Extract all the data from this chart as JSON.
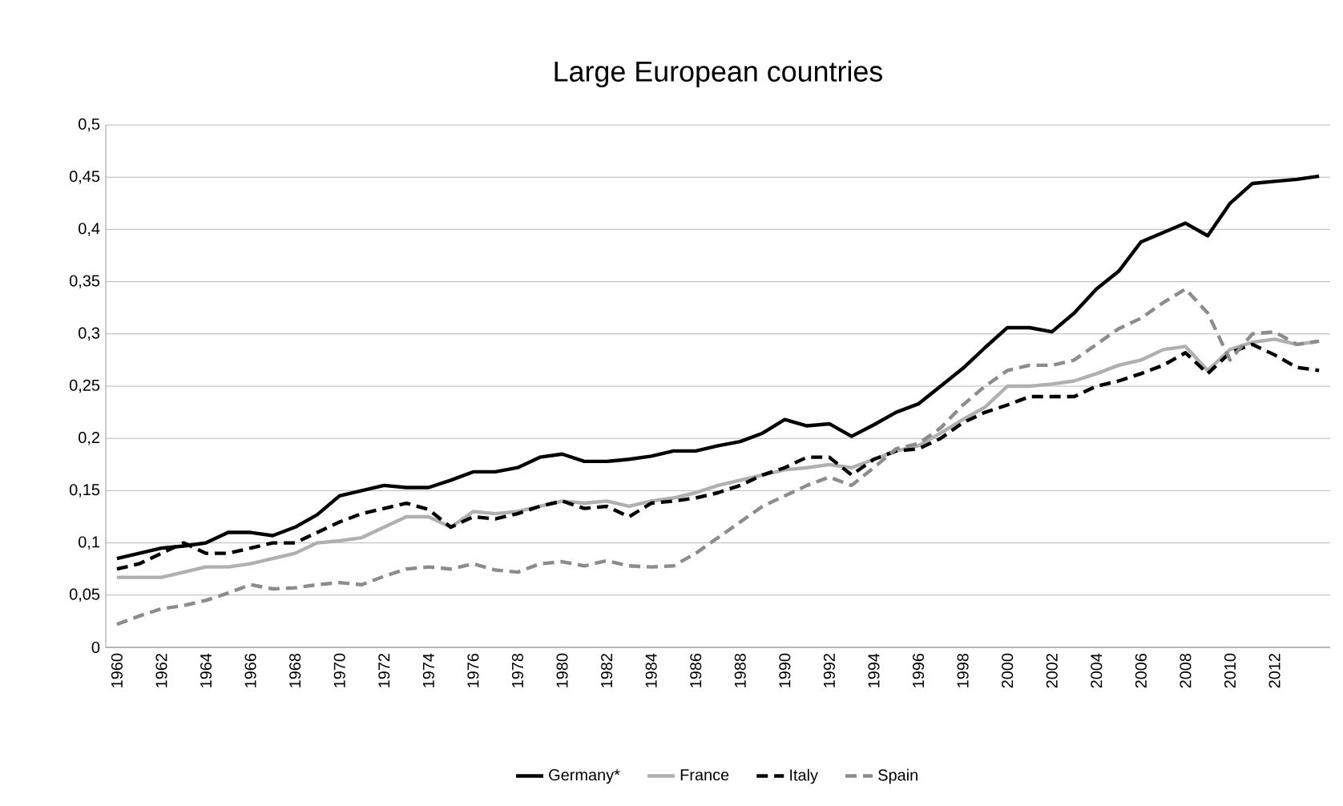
{
  "chart_data": {
    "type": "line",
    "title": "Large European countries",
    "categories": [
      "1960",
      null,
      "1962",
      null,
      "1964",
      null,
      "1966",
      null,
      "1968",
      null,
      "1970",
      null,
      "1972",
      null,
      "1974",
      null,
      "1976",
      null,
      "1978",
      null,
      "1980",
      null,
      "1982",
      null,
      "1984",
      null,
      "1986",
      null,
      "1988",
      null,
      "1990",
      null,
      "1992",
      null,
      "1994",
      null,
      "1996",
      null,
      "1998",
      null,
      "2000",
      null,
      "2002",
      null,
      "2004",
      null,
      "2006",
      null,
      "2008",
      null,
      "2010",
      null,
      "2012",
      null,
      null
    ],
    "ylim": [
      0,
      0.5
    ],
    "yticks": [
      0,
      {
        "value": 0.05,
        "label": "0,05"
      },
      {
        "value": 0.1,
        "label": "0,1"
      },
      {
        "value": 0.15,
        "label": "0,15"
      },
      {
        "value": 0.2,
        "label": "0,2"
      },
      {
        "value": 0.25,
        "label": "0,25"
      },
      {
        "value": 0.3,
        "label": "0,3"
      },
      {
        "value": 0.35,
        "label": "0,35"
      },
      {
        "value": 0.4,
        "label": "0,4"
      },
      {
        "value": 0.45,
        "label": "0,45"
      },
      {
        "value": 0.5,
        "label": "0,5"
      }
    ],
    "grid": "y",
    "legend": "bottom",
    "series": [
      {
        "name": "Germany*",
        "color": "#000000",
        "line_style": "solid",
        "values": [
          0.085,
          0.09,
          0.095,
          0.097,
          0.1,
          0.11,
          0.11,
          0.107,
          0.115,
          0.127,
          0.145,
          0.15,
          0.155,
          0.153,
          0.153,
          0.16,
          0.168,
          0.168,
          0.172,
          0.182,
          0.185,
          0.178,
          0.178,
          0.18,
          0.183,
          0.188,
          0.188,
          0.193,
          0.197,
          0.205,
          0.218,
          0.212,
          0.214,
          0.202,
          0.213,
          0.225,
          0.233,
          0.25,
          0.267,
          0.287,
          0.306,
          0.306,
          0.302,
          0.32,
          0.343,
          0.36,
          0.388,
          0.397,
          0.406,
          0.394,
          0.425,
          0.444,
          0.446,
          0.448,
          0.451
        ]
      },
      {
        "name": "France",
        "color": "#b0b0b0",
        "line_style": "solid",
        "values": [
          0.067,
          0.067,
          0.067,
          0.072,
          0.077,
          0.077,
          0.08,
          0.085,
          0.09,
          0.1,
          0.102,
          0.105,
          0.115,
          0.125,
          0.125,
          0.115,
          0.13,
          0.128,
          0.13,
          0.135,
          0.14,
          0.138,
          0.14,
          0.135,
          0.14,
          0.143,
          0.148,
          0.155,
          0.16,
          0.165,
          0.17,
          0.172,
          0.175,
          0.172,
          0.18,
          0.188,
          0.193,
          0.205,
          0.218,
          0.23,
          0.25,
          0.25,
          0.252,
          0.255,
          0.262,
          0.27,
          0.275,
          0.285,
          0.288,
          0.265,
          0.285,
          0.292,
          0.295,
          0.29,
          0.293
        ]
      },
      {
        "name": "Italy",
        "color": "#000000",
        "line_style": "dashed",
        "values": [
          0.075,
          0.08,
          0.09,
          0.1,
          0.09,
          0.09,
          0.095,
          0.1,
          0.1,
          0.11,
          0.12,
          0.128,
          0.133,
          0.138,
          0.132,
          0.115,
          0.125,
          0.123,
          0.128,
          0.135,
          0.14,
          0.133,
          0.135,
          0.125,
          0.138,
          0.14,
          0.143,
          0.148,
          0.155,
          0.165,
          0.172,
          0.182,
          0.182,
          0.165,
          0.18,
          0.188,
          0.19,
          0.2,
          0.215,
          0.225,
          0.232,
          0.24,
          0.24,
          0.24,
          0.25,
          0.255,
          0.262,
          0.27,
          0.282,
          0.262,
          0.282,
          0.29,
          0.28,
          0.268,
          0.265
        ]
      },
      {
        "name": "Spain",
        "color": "#8c8c8c",
        "line_style": "dashed",
        "values": [
          0.022,
          0.03,
          0.037,
          0.04,
          0.045,
          0.052,
          0.06,
          0.056,
          0.057,
          0.06,
          0.062,
          0.06,
          0.068,
          0.075,
          0.077,
          0.075,
          0.08,
          0.074,
          0.072,
          0.08,
          0.082,
          0.078,
          0.083,
          0.078,
          0.077,
          0.078,
          0.09,
          0.105,
          0.12,
          0.135,
          0.145,
          0.155,
          0.163,
          0.155,
          0.172,
          0.19,
          0.195,
          0.21,
          0.232,
          0.25,
          0.265,
          0.27,
          0.27,
          0.275,
          0.29,
          0.305,
          0.315,
          0.33,
          0.343,
          0.32,
          0.275,
          0.3,
          0.302,
          0.29,
          0.293
        ]
      }
    ]
  }
}
